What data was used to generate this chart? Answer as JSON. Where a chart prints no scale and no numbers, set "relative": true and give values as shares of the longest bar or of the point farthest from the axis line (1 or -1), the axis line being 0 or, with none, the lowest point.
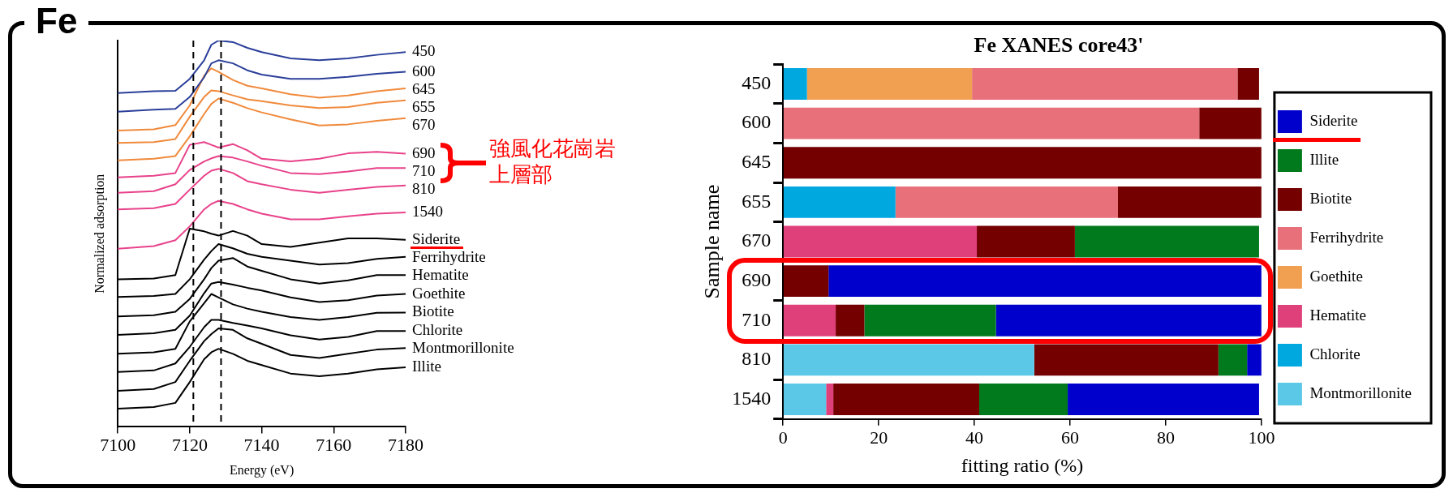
{
  "chart_data": [
    {
      "type": "line",
      "title": "Fe",
      "xlabel": "Energy (eV)",
      "ylabel": "Normalized adsorption",
      "relative": true,
      "marker": "none",
      "line_style": "solid",
      "legend": false,
      "grid": false,
      "x": [
        7100,
        7110,
        7116,
        7120,
        7124,
        7126,
        7128,
        7132,
        7136,
        7140,
        7148,
        7156,
        7164,
        7172,
        7180
      ],
      "xlim": [
        7100,
        7180
      ],
      "xticks": [
        7100,
        7120,
        7140,
        7160,
        7180
      ],
      "ref_lines": [
        {
          "axis": "x",
          "value": 7121,
          "line_style": "dashed",
          "color": "#000000"
        },
        {
          "axis": "x",
          "value": 7128.7,
          "line_style": "dashed",
          "color": "#000000"
        }
      ],
      "annotations": [
        "強風化花崗岩上層部"
      ],
      "series": [
        {
          "name": "450",
          "color": "#2b3f9a",
          "values": [
            0.864,
            0.869,
            0.87,
            0.901,
            0.949,
            0.989,
            1,
            0.996,
            0.981,
            0.97,
            0.954,
            0.949,
            0.954,
            0.963,
            0.97
          ]
        },
        {
          "name": "600",
          "color": "#2b3f9a",
          "values": [
            0.816,
            0.821,
            0.823,
            0.854,
            0.905,
            0.941,
            0.949,
            0.941,
            0.923,
            0.912,
            0.901,
            0.901,
            0.906,
            0.914,
            0.919
          ]
        },
        {
          "name": "645",
          "color": "#f08a3c",
          "values": [
            0.767,
            0.77,
            0.781,
            0.832,
            0.909,
            0.928,
            0.919,
            0.898,
            0.883,
            0.876,
            0.861,
            0.852,
            0.858,
            0.869,
            0.876
          ]
        },
        {
          "name": "655",
          "color": "#f08a3c",
          "values": [
            0.735,
            0.737,
            0.745,
            0.803,
            0.854,
            0.871,
            0.869,
            0.858,
            0.848,
            0.843,
            0.832,
            0.825,
            0.828,
            0.839,
            0.845
          ]
        },
        {
          "name": "670",
          "color": "#f08a3c",
          "values": [
            0.69,
            0.694,
            0.701,
            0.752,
            0.81,
            0.836,
            0.85,
            0.839,
            0.825,
            0.814,
            0.796,
            0.78,
            0.783,
            0.792,
            0.799
          ]
        },
        {
          "name": "690",
          "color": "#e8428a",
          "values": [
            0.646,
            0.65,
            0.657,
            0.73,
            0.737,
            0.73,
            0.723,
            0.732,
            0.716,
            0.694,
            0.687,
            0.694,
            0.708,
            0.712,
            0.707
          ]
        },
        {
          "name": "710",
          "color": "#e8428a",
          "values": [
            0.606,
            0.61,
            0.628,
            0.665,
            0.687,
            0.695,
            0.701,
            0.697,
            0.687,
            0.676,
            0.657,
            0.654,
            0.661,
            0.67,
            0.67
          ]
        },
        {
          "name": "810",
          "color": "#e8428a",
          "values": [
            0.563,
            0.566,
            0.577,
            0.614,
            0.65,
            0.663,
            0.668,
            0.657,
            0.636,
            0.628,
            0.614,
            0.606,
            0.614,
            0.621,
            0.625
          ]
        },
        {
          "name": "1540",
          "color": "#e8428a",
          "values": [
            0.461,
            0.468,
            0.483,
            0.519,
            0.563,
            0.577,
            0.585,
            0.577,
            0.563,
            0.552,
            0.537,
            0.537,
            0.545,
            0.552,
            0.555
          ]
        },
        {
          "name": "Siderite",
          "color": "#000000",
          "values": [
            0.382,
            0.384,
            0.393,
            0.513,
            0.506,
            0.5,
            0.495,
            0.507,
            0.495,
            0.473,
            0.466,
            0.477,
            0.488,
            0.488,
            0.484
          ]
        },
        {
          "name": "Ferrihydrite",
          "color": "#000000",
          "values": [
            0.336,
            0.339,
            0.344,
            0.382,
            0.433,
            0.455,
            0.473,
            0.462,
            0.448,
            0.44,
            0.43,
            0.42,
            0.424,
            0.435,
            0.44
          ]
        },
        {
          "name": "Hematite",
          "color": "#000000",
          "values": [
            0.286,
            0.289,
            0.298,
            0.331,
            0.382,
            0.411,
            0.43,
            0.437,
            0.415,
            0.404,
            0.382,
            0.371,
            0.379,
            0.393,
            0.393
          ]
        },
        {
          "name": "Goethite",
          "color": "#000000",
          "values": [
            0.238,
            0.242,
            0.251,
            0.288,
            0.346,
            0.371,
            0.375,
            0.368,
            0.36,
            0.353,
            0.335,
            0.323,
            0.328,
            0.34,
            0.344
          ]
        },
        {
          "name": "Biotite",
          "color": "#000000",
          "values": [
            0.189,
            0.193,
            0.202,
            0.273,
            0.32,
            0.344,
            0.335,
            0.317,
            0.306,
            0.298,
            0.284,
            0.277,
            0.284,
            0.295,
            0.296
          ]
        },
        {
          "name": "Chlorite",
          "color": "#000000",
          "values": [
            0.142,
            0.146,
            0.164,
            0.207,
            0.258,
            0.277,
            0.277,
            0.269,
            0.262,
            0.255,
            0.237,
            0.226,
            0.233,
            0.248,
            0.248
          ]
        },
        {
          "name": "Montmorillonite",
          "color": "#000000",
          "values": [
            0.093,
            0.098,
            0.116,
            0.171,
            0.222,
            0.24,
            0.255,
            0.251,
            0.229,
            0.215,
            0.186,
            0.178,
            0.189,
            0.2,
            0.204
          ]
        },
        {
          "name": "Illite",
          "color": "#000000",
          "values": [
            0.047,
            0.051,
            0.062,
            0.116,
            0.175,
            0.193,
            0.202,
            0.189,
            0.171,
            0.16,
            0.138,
            0.131,
            0.138,
            0.149,
            0.154
          ]
        }
      ]
    },
    {
      "type": "bar",
      "orientation": "horizontal",
      "stacked": true,
      "title": "Fe XANES core43'",
      "xlabel": "fitting ratio (%)",
      "ylabel": "Sample name",
      "legend": "right",
      "grid": false,
      "categories": [
        "450",
        "600",
        "645",
        "655",
        "670",
        "690",
        "710",
        "810",
        "1540"
      ],
      "xlim": [
        0,
        100
      ],
      "xticks": [
        0,
        20,
        40,
        60,
        80,
        100
      ],
      "series": [
        {
          "name": "Montmorillonite",
          "color": "#5cc8e8",
          "values": [
            null,
            null,
            null,
            null,
            null,
            null,
            null,
            52.5,
            9
          ]
        },
        {
          "name": "Chlorite",
          "color": "#00a8e0",
          "values": [
            5,
            null,
            null,
            23.5,
            null,
            null,
            null,
            null,
            null
          ]
        },
        {
          "name": "Hematite",
          "color": "#e0407a",
          "values": [
            null,
            null,
            null,
            null,
            40.5,
            null,
            11,
            null,
            1.5
          ]
        },
        {
          "name": "Goethite",
          "color": "#f0a050",
          "values": [
            34.5,
            null,
            null,
            null,
            null,
            null,
            null,
            null,
            null
          ]
        },
        {
          "name": "Ferrihydrite",
          "color": "#e8707a",
          "values": [
            55.5,
            87,
            null,
            46.5,
            null,
            null,
            null,
            null,
            null
          ]
        },
        {
          "name": "Biotite",
          "color": "#750000",
          "values": [
            4.5,
            13,
            100,
            30,
            20.5,
            9.5,
            6,
            38.5,
            30.5
          ]
        },
        {
          "name": "Illite",
          "color": "#007a1c",
          "values": [
            null,
            null,
            null,
            null,
            38.5,
            null,
            27.5,
            6,
            18.5
          ]
        },
        {
          "name": "Siderite",
          "color": "#0000cc",
          "values": [
            null,
            null,
            null,
            null,
            null,
            90.5,
            55.5,
            3,
            40
          ]
        }
      ]
    }
  ]
}
